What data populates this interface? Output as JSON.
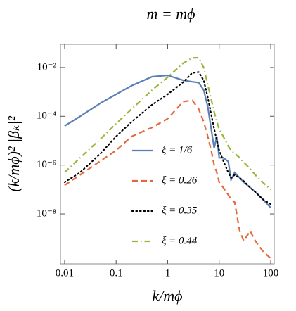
{
  "chart_data": {
    "type": "line",
    "title": "m = mϕ",
    "xlabel": "k/mϕ",
    "ylabel": "(k/mϕ)² |βₖ|²",
    "xscale": "log",
    "yscale": "log",
    "legend": "lower center",
    "x": [
      0.01,
      0.02,
      0.05,
      0.1,
      0.2,
      0.5,
      1,
      2,
      3,
      4,
      5,
      6,
      7,
      8,
      9,
      10,
      12,
      15,
      17,
      20,
      25,
      30,
      40,
      50,
      70,
      100
    ],
    "series": [
      {
        "name": "ξ = 1/6",
        "color": "#5b7fb5",
        "style": "solid",
        "values": [
          4e-05,
          0.0001,
          0.00035,
          0.0008,
          0.0018,
          0.0042,
          0.0048,
          0.003,
          0.0026,
          0.0024,
          0.0012,
          0.00025,
          3e-05,
          5e-06,
          1.5e-05,
          2e-06,
          2e-06,
          1.4e-06,
          2.5e-07,
          5e-07,
          3e-07,
          2e-07,
          1.2e-07,
          8e-08,
          4e-08,
          1.8e-08
        ]
      },
      {
        "name": "ξ = 0.26",
        "color": "#e5683a",
        "style": "dashed",
        "values": [
          1.5e-07,
          4e-07,
          1.5e-06,
          4e-06,
          1.5e-05,
          3.5e-05,
          8e-05,
          0.0004,
          0.00045,
          0.0002,
          6e-05,
          1.5e-05,
          4e-06,
          1e-06,
          5e-07,
          2e-07,
          1.2e-07,
          6e-08,
          4e-08,
          3e-08,
          2e-09,
          8e-10,
          2e-09,
          8e-10,
          3e-10,
          1.5e-10
        ]
      },
      {
        "name": "ξ = 0.35",
        "color": "#000000",
        "style": "dotted",
        "values": [
          2e-07,
          5e-07,
          3e-06,
          1.5e-05,
          6e-05,
          0.0003,
          0.0008,
          0.0025,
          0.006,
          0.0065,
          0.003,
          0.0006,
          0.00012,
          3e-05,
          1e-05,
          4e-06,
          1.5e-06,
          5e-07,
          3e-07,
          4e-07,
          3e-07,
          2.2e-07,
          1.2e-07,
          8e-08,
          4e-08,
          2.5e-08
        ]
      },
      {
        "name": "ξ = 0.44",
        "color": "#9bb53c",
        "style": "dashdot",
        "values": [
          5e-07,
          2e-06,
          1.2e-05,
          5e-05,
          0.0002,
          0.0012,
          0.004,
          0.015,
          0.025,
          0.025,
          0.01,
          0.002,
          0.0005,
          0.00015,
          6e-05,
          3e-05,
          1.5e-05,
          6e-06,
          4e-06,
          3e-06,
          2e-06,
          1.3e-06,
          7e-07,
          4e-07,
          2e-07,
          1e-07
        ]
      }
    ],
    "xlim": [
      0.0083,
      117
    ],
    "xticks": [
      0.01,
      0.1,
      1,
      10,
      100
    ],
    "ylim": [
      9e-11,
      0.089
    ],
    "yticks": [
      {
        "value": 0.01,
        "label": "10⁻²"
      },
      {
        "value": 0.0001,
        "label": "10⁻⁴"
      },
      {
        "value": 1e-06,
        "label": "10⁻⁶"
      },
      {
        "value": 1e-08,
        "label": "10⁻⁸"
      }
    ]
  }
}
